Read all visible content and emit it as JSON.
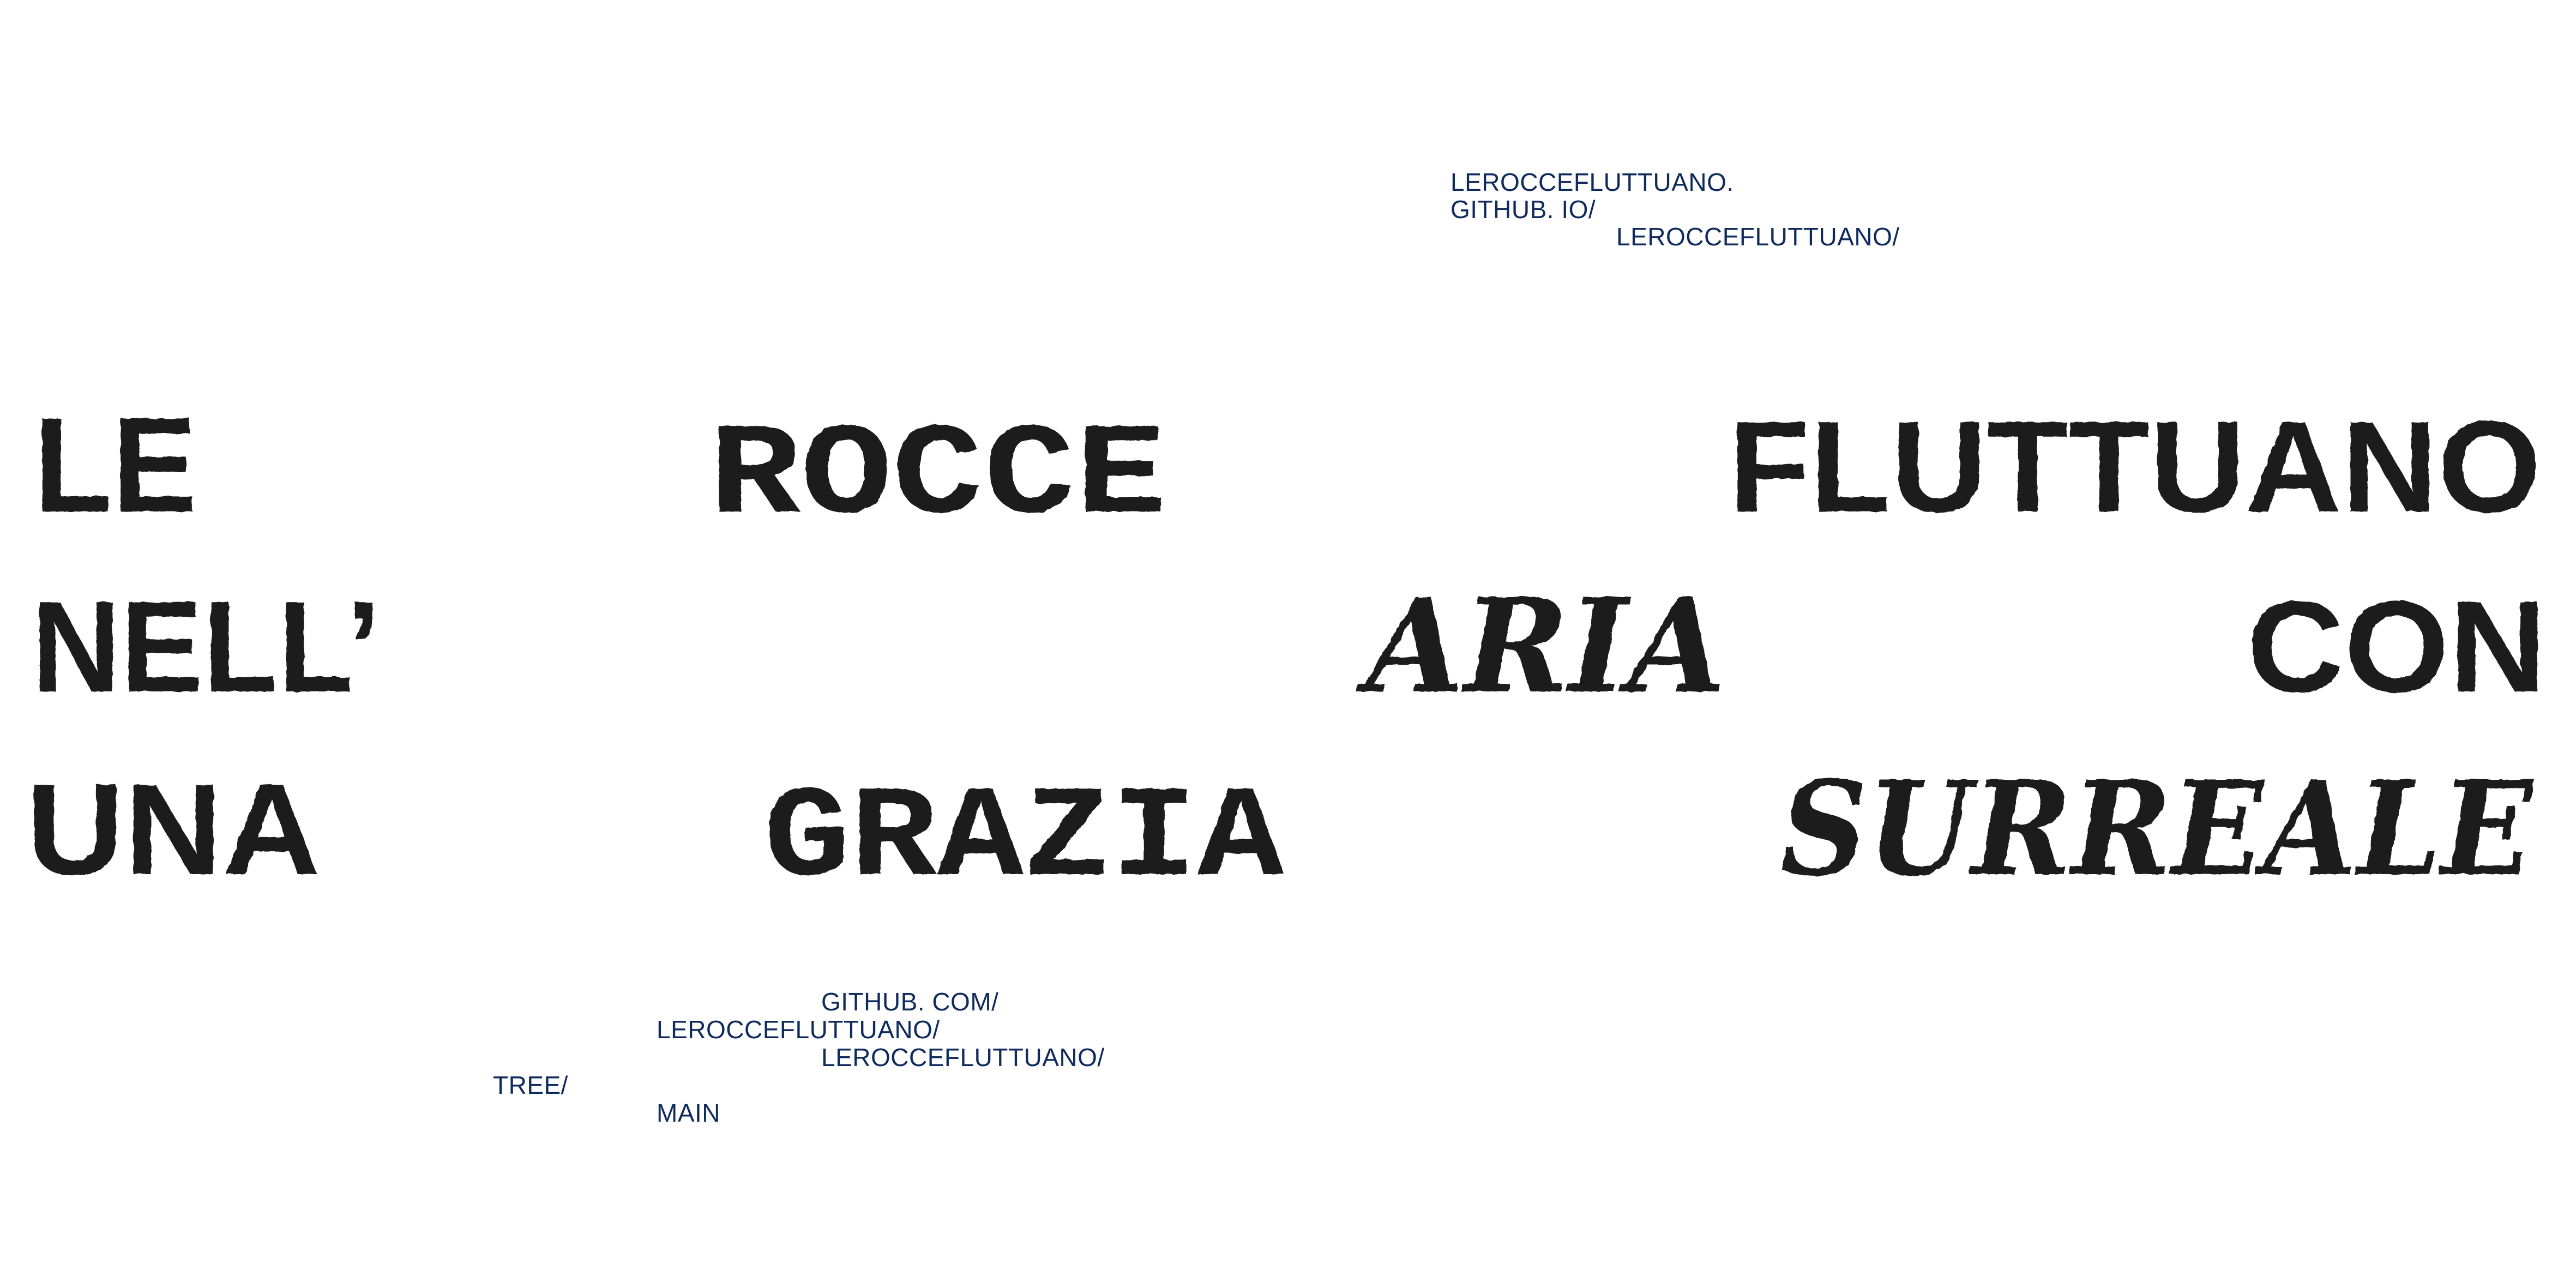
{
  "top_link": {
    "line1": "LEROCCEFLUTTUANO.",
    "line2": "GITHUB. IO/",
    "line3": "LEROCCEFLUTTUANO/"
  },
  "bottom_link": {
    "line1": "GITHUB. COM/",
    "line2": "LEROCCEFLUTTUANO/",
    "line3": "LEROCCEFLUTTUANO/",
    "line4": "TREE/",
    "line5": "MAIN"
  },
  "headline": {
    "le": "LE",
    "rocce": "ROCCE",
    "fluttuano": "FLUTTUANO",
    "nell": "NELL’",
    "aria": "ARIA",
    "con": "CON",
    "una": "UNA",
    "grazia": "GRAZIA",
    "surreale": "SURREALE"
  },
  "colors": {
    "link": "#0f2a5c",
    "headline": "#1e1e1e",
    "background": "#ffffff"
  }
}
